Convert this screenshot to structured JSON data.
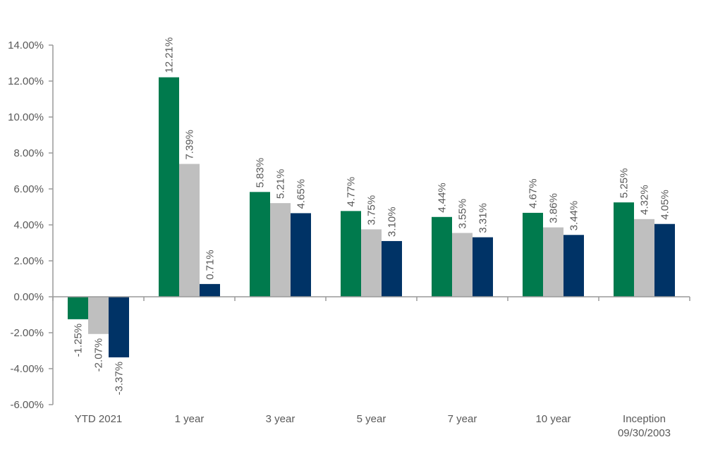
{
  "chart_data": {
    "type": "bar",
    "categories": [
      [
        "YTD 2021"
      ],
      [
        "1 year"
      ],
      [
        "3 year"
      ],
      [
        "5 year"
      ],
      [
        "7 year"
      ],
      [
        "10 year"
      ],
      [
        "Inception",
        "09/30/2003"
      ]
    ],
    "series": [
      {
        "color": "#007a4d",
        "values": [
          -1.25,
          12.21,
          5.83,
          4.77,
          4.44,
          4.67,
          5.25
        ],
        "labels": [
          "-1.25%",
          "12.21%",
          "5.83%",
          "4.77%",
          "4.44%",
          "4.67%",
          "5.25%"
        ]
      },
      {
        "color": "#bfbfbf",
        "values": [
          -2.07,
          7.39,
          5.21,
          3.75,
          3.55,
          3.86,
          4.32
        ],
        "labels": [
          "-2.07%",
          "7.39%",
          "5.21%",
          "3.75%",
          "3.55%",
          "3.86%",
          "4.32%"
        ]
      },
      {
        "color": "#003366",
        "values": [
          -3.37,
          0.71,
          4.65,
          3.1,
          3.31,
          3.44,
          4.05
        ],
        "labels": [
          "-3.37%",
          "0.71%",
          "4.65%",
          "3.10%",
          "3.31%",
          "3.44%",
          "4.05%"
        ]
      }
    ],
    "ylim": [
      -6,
      14
    ],
    "yticks": [
      14,
      12,
      10,
      8,
      6,
      4,
      2,
      0,
      -2,
      -4,
      -6
    ],
    "ytick_labels": [
      "14.00%",
      "12.00%",
      "10.00%",
      "8.00%",
      "6.00%",
      "4.00%",
      "2.00%",
      "0.00%",
      "-2.00%",
      "-4.00%",
      "-6.00%"
    ],
    "title": "",
    "xlabel": "",
    "ylabel": "",
    "legend": "none",
    "grid": false
  }
}
